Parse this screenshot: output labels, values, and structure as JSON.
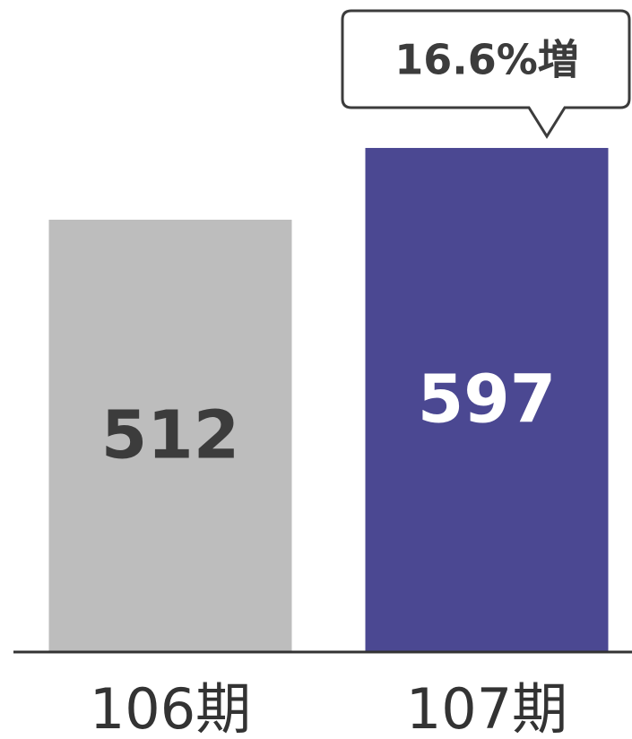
{
  "chart_data": {
    "type": "bar",
    "categories": [
      "106期",
      "107期"
    ],
    "values": [
      512,
      597
    ],
    "colors": [
      "#bdbdbd",
      "#4b4892"
    ],
    "ylim": [
      0,
      700
    ],
    "annotation": "16.6%増"
  }
}
